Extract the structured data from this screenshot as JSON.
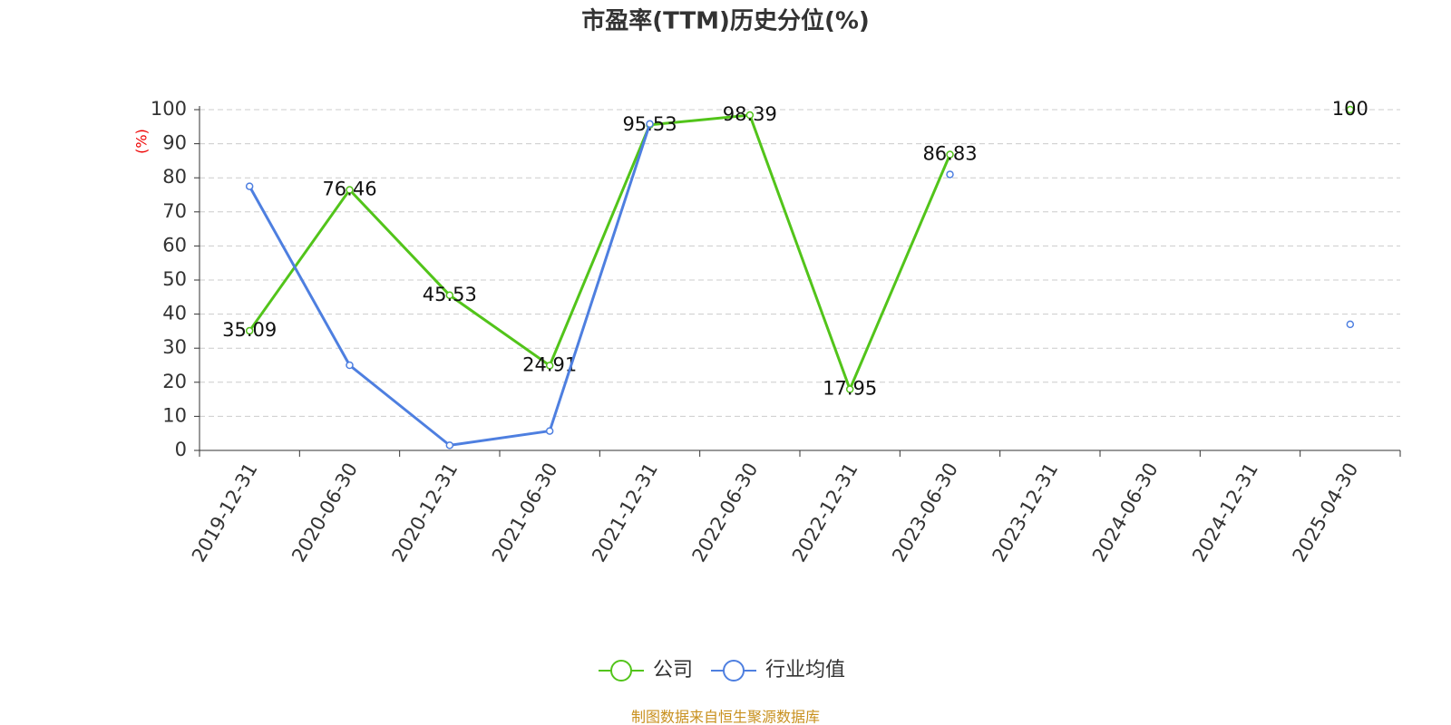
{
  "chart_data": {
    "type": "line",
    "title": "市盈率(TTM)历史分位(%)",
    "y_label": "(%)",
    "categories": [
      "2019-12-31",
      "2020-06-30",
      "2020-12-31",
      "2021-06-30",
      "2021-12-31",
      "2022-06-30",
      "2022-12-31",
      "2023-06-30",
      "2023-12-31",
      "2024-06-30",
      "2024-12-31",
      "2025-04-30"
    ],
    "series": [
      {
        "name": "公司",
        "color": "#52c41a",
        "values": [
          35.09,
          76.46,
          45.53,
          24.91,
          95.53,
          98.39,
          17.95,
          86.83,
          null,
          null,
          null,
          100
        ],
        "data_labels": true
      },
      {
        "name": "行业均值",
        "color": "#4e7fe0",
        "values": [
          77.5,
          25,
          1.5,
          5.7,
          95.8,
          null,
          null,
          81,
          null,
          null,
          null,
          37
        ],
        "data_labels": false
      }
    ],
    "ylim": [
      0,
      100
    ],
    "yticks": [
      0,
      10,
      20,
      30,
      40,
      50,
      60,
      70,
      80,
      90,
      100
    ],
    "grid": true,
    "source": "制图数据来自恒生聚源数据库"
  }
}
